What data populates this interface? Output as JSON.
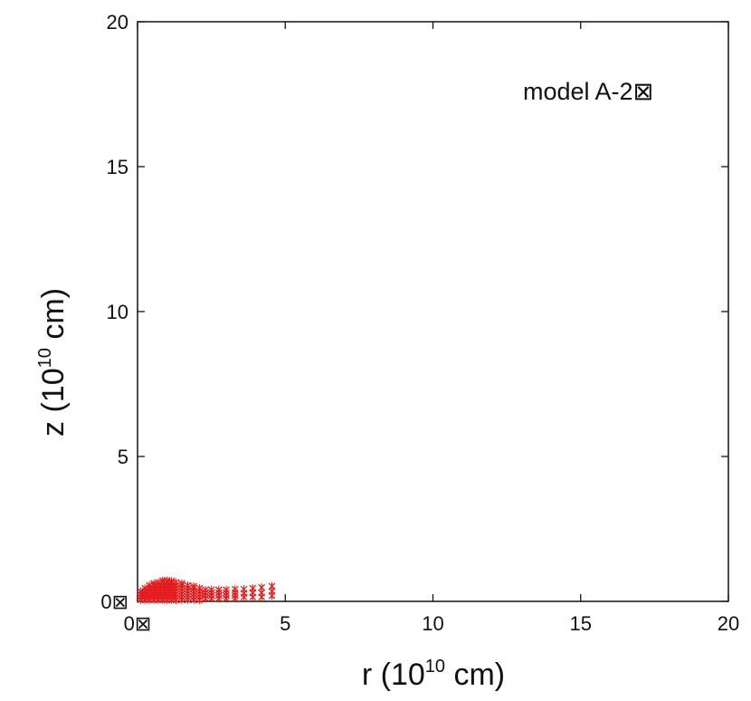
{
  "chart_data": {
    "type": "scatter",
    "title": "",
    "xlabel_base": "r (10",
    "xlabel_exp": "10",
    "xlabel_tail": " cm)",
    "ylabel_base": "z (10",
    "ylabel_exp": "10",
    "ylabel_tail": " cm)",
    "xlim": [
      0,
      20
    ],
    "ylim": [
      0,
      20
    ],
    "xticks": [
      0,
      5,
      10,
      15,
      20
    ],
    "yticks": [
      0,
      5,
      10,
      15,
      20
    ],
    "xtick_labels": [
      "0⊠",
      "5",
      "10",
      "15",
      "20"
    ],
    "ytick_labels": [
      "0⊠",
      "5",
      "10",
      "15",
      "20"
    ],
    "grid": false,
    "annotation": "model A-2⊠",
    "marker_color": "#e31a1c",
    "series": [
      {
        "values": [
          [
            0.1,
            0.05
          ],
          [
            0.1,
            0.15
          ],
          [
            0.1,
            0.25
          ],
          [
            0.1,
            0.35
          ],
          [
            0.25,
            0.05
          ],
          [
            0.25,
            0.15
          ],
          [
            0.25,
            0.25
          ],
          [
            0.25,
            0.35
          ],
          [
            0.25,
            0.45
          ],
          [
            0.4,
            0.05
          ],
          [
            0.4,
            0.15
          ],
          [
            0.4,
            0.25
          ],
          [
            0.4,
            0.35
          ],
          [
            0.4,
            0.45
          ],
          [
            0.4,
            0.55
          ],
          [
            0.55,
            0.05
          ],
          [
            0.55,
            0.15
          ],
          [
            0.55,
            0.25
          ],
          [
            0.55,
            0.35
          ],
          [
            0.55,
            0.45
          ],
          [
            0.55,
            0.55
          ],
          [
            0.55,
            0.62
          ],
          [
            0.7,
            0.05
          ],
          [
            0.7,
            0.15
          ],
          [
            0.7,
            0.25
          ],
          [
            0.7,
            0.35
          ],
          [
            0.7,
            0.45
          ],
          [
            0.7,
            0.55
          ],
          [
            0.7,
            0.65
          ],
          [
            0.85,
            0.05
          ],
          [
            0.85,
            0.15
          ],
          [
            0.85,
            0.25
          ],
          [
            0.85,
            0.35
          ],
          [
            0.85,
            0.45
          ],
          [
            0.85,
            0.55
          ],
          [
            0.85,
            0.65
          ],
          [
            0.85,
            0.72
          ],
          [
            1.0,
            0.05
          ],
          [
            1.0,
            0.15
          ],
          [
            1.0,
            0.25
          ],
          [
            1.0,
            0.35
          ],
          [
            1.0,
            0.45
          ],
          [
            1.0,
            0.55
          ],
          [
            1.0,
            0.65
          ],
          [
            1.0,
            0.72
          ],
          [
            1.15,
            0.05
          ],
          [
            1.15,
            0.15
          ],
          [
            1.15,
            0.25
          ],
          [
            1.15,
            0.35
          ],
          [
            1.15,
            0.45
          ],
          [
            1.15,
            0.55
          ],
          [
            1.15,
            0.65
          ],
          [
            1.15,
            0.7
          ],
          [
            1.3,
            0.05
          ],
          [
            1.3,
            0.15
          ],
          [
            1.3,
            0.25
          ],
          [
            1.3,
            0.35
          ],
          [
            1.3,
            0.45
          ],
          [
            1.3,
            0.55
          ],
          [
            1.3,
            0.65
          ],
          [
            1.5,
            0.05
          ],
          [
            1.5,
            0.15
          ],
          [
            1.5,
            0.25
          ],
          [
            1.5,
            0.35
          ],
          [
            1.5,
            0.45
          ],
          [
            1.5,
            0.55
          ],
          [
            1.5,
            0.62
          ],
          [
            1.7,
            0.05
          ],
          [
            1.7,
            0.15
          ],
          [
            1.7,
            0.25
          ],
          [
            1.7,
            0.35
          ],
          [
            1.7,
            0.45
          ],
          [
            1.7,
            0.55
          ],
          [
            1.9,
            0.05
          ],
          [
            1.9,
            0.15
          ],
          [
            1.9,
            0.25
          ],
          [
            1.9,
            0.35
          ],
          [
            1.9,
            0.45
          ],
          [
            1.9,
            0.52
          ],
          [
            2.1,
            0.05
          ],
          [
            2.1,
            0.15
          ],
          [
            2.1,
            0.25
          ],
          [
            2.1,
            0.35
          ],
          [
            2.1,
            0.45
          ],
          [
            2.3,
            0.1
          ],
          [
            2.3,
            0.2
          ],
          [
            2.3,
            0.3
          ],
          [
            2.3,
            0.4
          ],
          [
            2.5,
            0.1
          ],
          [
            2.5,
            0.2
          ],
          [
            2.5,
            0.3
          ],
          [
            2.5,
            0.4
          ],
          [
            2.75,
            0.1
          ],
          [
            2.75,
            0.2
          ],
          [
            2.75,
            0.3
          ],
          [
            2.75,
            0.4
          ],
          [
            3.0,
            0.1
          ],
          [
            3.0,
            0.2
          ],
          [
            3.0,
            0.3
          ],
          [
            3.0,
            0.4
          ],
          [
            3.3,
            0.1
          ],
          [
            3.3,
            0.2
          ],
          [
            3.3,
            0.3
          ],
          [
            3.3,
            0.42
          ],
          [
            3.6,
            0.15
          ],
          [
            3.6,
            0.28
          ],
          [
            3.6,
            0.42
          ],
          [
            3.9,
            0.15
          ],
          [
            3.9,
            0.3
          ],
          [
            3.9,
            0.45
          ],
          [
            4.2,
            0.15
          ],
          [
            4.2,
            0.3
          ],
          [
            4.2,
            0.48
          ],
          [
            4.55,
            0.2
          ],
          [
            4.55,
            0.35
          ],
          [
            4.55,
            0.52
          ]
        ]
      }
    ]
  }
}
